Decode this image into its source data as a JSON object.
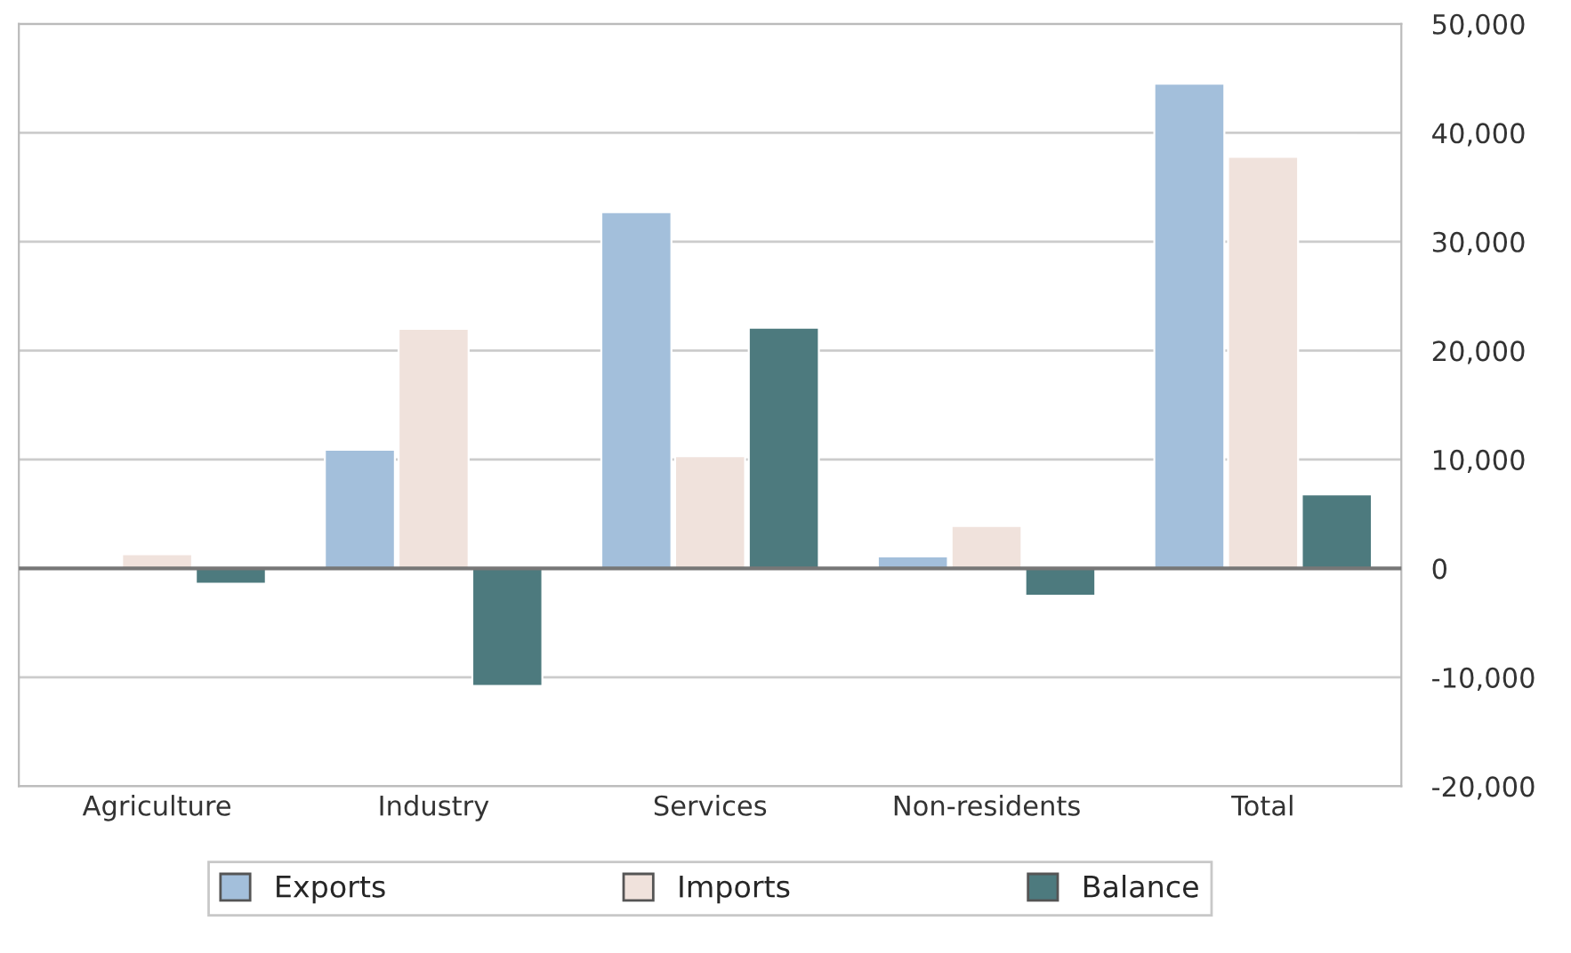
{
  "chart_data": {
    "type": "bar",
    "categories": [
      "Agriculture",
      "Industry",
      "Services",
      "Non-residents",
      "Total"
    ],
    "series": [
      {
        "name": "Exports",
        "color": "#a3bfdb",
        "values": [
          null,
          10900,
          32700,
          1100,
          44500
        ]
      },
      {
        "name": "Imports",
        "color": "#f0e2dc",
        "values": [
          1300,
          22000,
          10300,
          3900,
          37800
        ]
      },
      {
        "name": "Balance",
        "color": "#4d7a7e",
        "values": [
          -1400,
          -10800,
          22100,
          -2500,
          6800
        ]
      }
    ],
    "ylim": [
      -20000,
      50000
    ],
    "yticks": [
      {
        "value": -20000,
        "label": "-20,000"
      },
      {
        "value": -10000,
        "label": "-10,000"
      },
      0,
      {
        "value": 10000,
        "label": "10,000"
      },
      {
        "value": 20000,
        "label": "20,000"
      },
      {
        "value": 30000,
        "label": "30,000"
      },
      {
        "value": 40000,
        "label": "40,000"
      },
      {
        "value": 50000,
        "label": "50,000"
      }
    ],
    "grid": "y",
    "legend": "bottom"
  }
}
